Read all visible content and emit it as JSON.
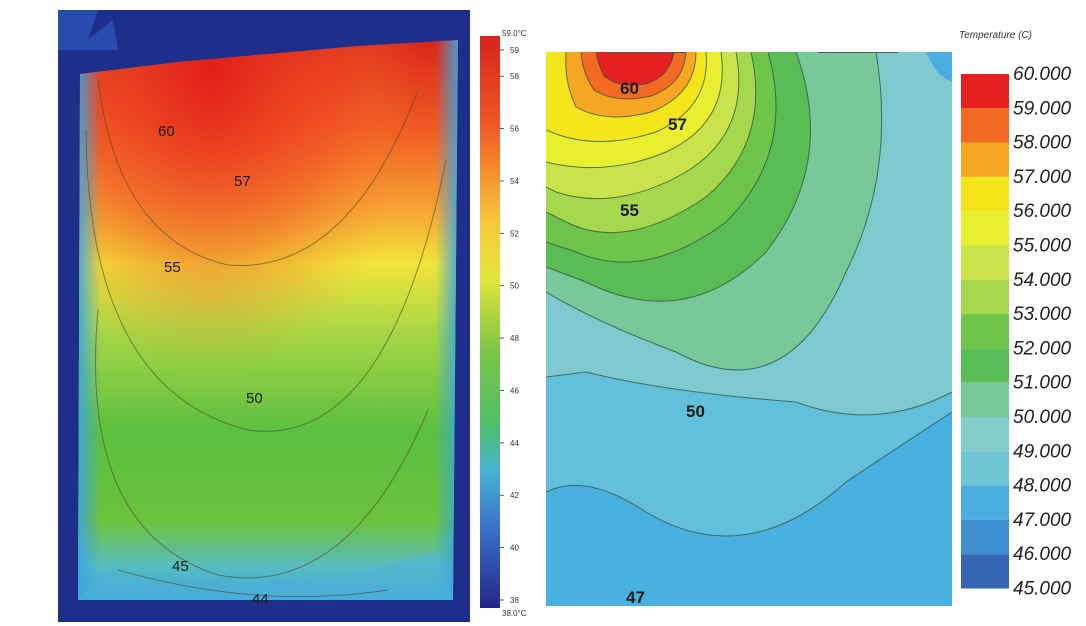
{
  "chart_data": [
    {
      "type": "heatmap",
      "title": "",
      "contour_labels": [
        "60",
        "57",
        "55",
        "50",
        "45",
        "44"
      ],
      "scale": {
        "max_label": "59.0°C",
        "min_label": "38.0°C",
        "ticks": [
          "59",
          "58",
          "56",
          "54",
          "52",
          "50",
          "48",
          "46",
          "44",
          "42",
          "40",
          "38"
        ]
      },
      "colors": {
        "hot": "#e02a1c",
        "warm": "#f6ee3a",
        "mid": "#5bc241",
        "cool": "#49b6e0",
        "frame": "#1d2f8a"
      }
    },
    {
      "type": "heatmap",
      "title": "",
      "contour_labels": [
        "60",
        "57",
        "55",
        "50",
        "47"
      ],
      "legend": {
        "title": "Temperature (C)",
        "levels": [
          "60.000",
          "59.000",
          "58.000",
          "57.000",
          "56.000",
          "55.000",
          "54.000",
          "53.000",
          "52.000",
          "51.000",
          "50.000",
          "49.000",
          "48.000",
          "47.000",
          "46.000",
          "45.000"
        ],
        "colors": [
          "#e62020",
          "#f36b22",
          "#f7a621",
          "#f5e61c",
          "#e8ef2e",
          "#c9e44a",
          "#a5d84c",
          "#6fc54a",
          "#59bc55",
          "#78c89a",
          "#82ccc9",
          "#6fc5d4",
          "#4aaee0",
          "#3d8fd0",
          "#3466b4",
          "#2c3f99"
        ]
      }
    }
  ]
}
